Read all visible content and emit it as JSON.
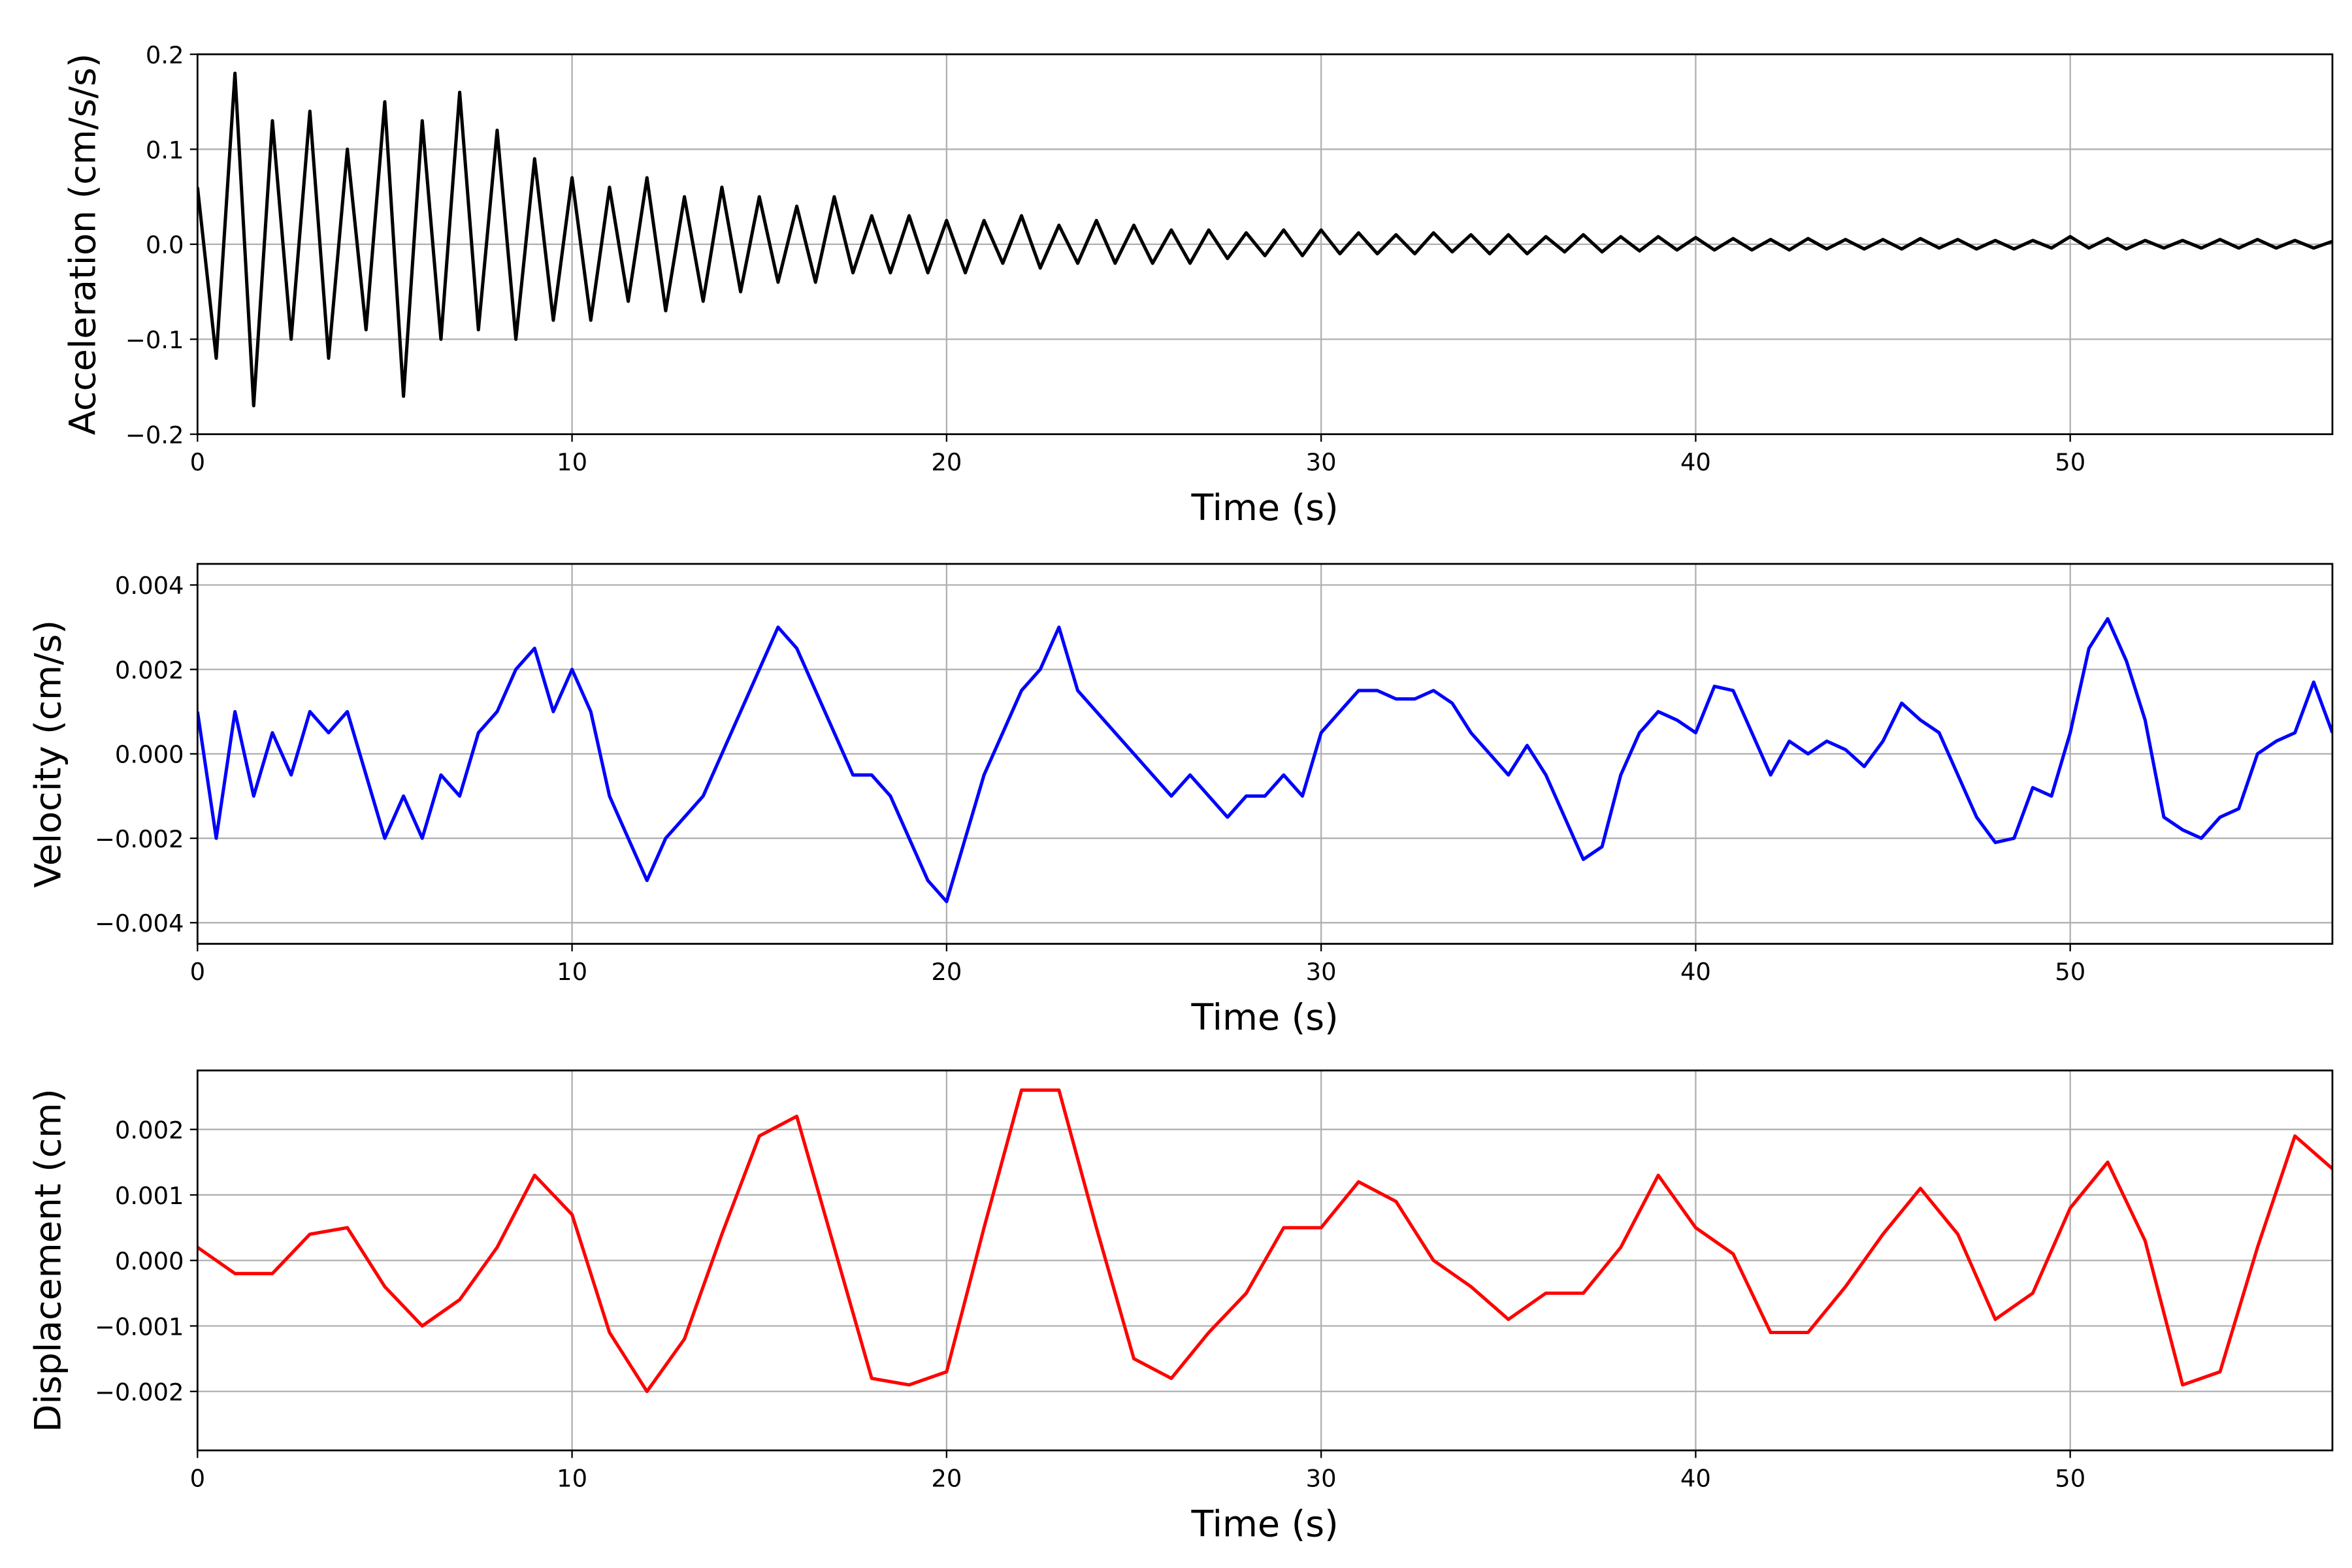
{
  "chart_data": [
    {
      "type": "line",
      "xlabel": "Time (s)",
      "ylabel": "Acceleration (cm/s/s)",
      "color": "#000000",
      "grid": true,
      "xlim": [
        0,
        57
      ],
      "xticks": [
        0,
        10,
        20,
        30,
        40,
        50
      ],
      "ylim": [
        -0.2,
        0.2
      ],
      "yticks": [
        {
          "value": -0.2,
          "label": "−0.2"
        },
        {
          "value": -0.1,
          "label": "−0.1"
        },
        {
          "value": 0,
          "label": "0.0"
        },
        0.1,
        0.2
      ],
      "x": [
        0,
        0.5,
        1,
        1.5,
        2,
        2.5,
        3,
        3.5,
        4,
        4.5,
        5,
        5.5,
        6,
        6.5,
        7,
        7.5,
        8,
        8.5,
        9,
        9.5,
        10,
        10.5,
        11,
        11.5,
        12,
        12.5,
        13,
        13.5,
        14,
        14.5,
        15,
        15.5,
        16,
        16.5,
        17,
        17.5,
        18,
        18.5,
        19,
        19.5,
        20,
        20.5,
        21,
        21.5,
        22,
        22.5,
        23,
        23.5,
        24,
        24.5,
        25,
        25.5,
        26,
        26.5,
        27,
        27.5,
        28,
        28.5,
        29,
        29.5,
        30,
        30.5,
        31,
        31.5,
        32,
        32.5,
        33,
        33.5,
        34,
        34.5,
        35,
        35.5,
        36,
        36.5,
        37,
        37.5,
        38,
        38.5,
        39,
        39.5,
        40,
        40.5,
        41,
        41.5,
        42,
        42.5,
        43,
        43.5,
        44,
        44.5,
        45,
        45.5,
        46,
        46.5,
        47,
        47.5,
        48,
        48.5,
        49,
        49.5,
        50,
        50.5,
        51,
        51.5,
        52,
        52.5,
        53,
        53.5,
        54,
        54.5,
        55,
        55.5,
        56,
        56.5,
        57
      ],
      "values": [
        0.06,
        -0.12,
        0.18,
        -0.17,
        0.13,
        -0.1,
        0.14,
        -0.12,
        0.1,
        -0.09,
        0.15,
        -0.16,
        0.13,
        -0.1,
        0.16,
        -0.09,
        0.12,
        -0.1,
        0.09,
        -0.08,
        0.07,
        -0.08,
        0.06,
        -0.06,
        0.07,
        -0.07,
        0.05,
        -0.06,
        0.06,
        -0.05,
        0.05,
        -0.04,
        0.04,
        -0.04,
        0.05,
        -0.03,
        0.03,
        -0.03,
        0.03,
        -0.03,
        0.025,
        -0.03,
        0.025,
        -0.02,
        0.03,
        -0.025,
        0.02,
        -0.02,
        0.025,
        -0.02,
        0.02,
        -0.02,
        0.015,
        -0.02,
        0.015,
        -0.015,
        0.012,
        -0.012,
        0.015,
        -0.012,
        0.015,
        -0.01,
        0.012,
        -0.01,
        0.01,
        -0.01,
        0.012,
        -0.008,
        0.01,
        -0.01,
        0.01,
        -0.01,
        0.008,
        -0.008,
        0.01,
        -0.008,
        0.008,
        -0.007,
        0.008,
        -0.006,
        0.007,
        -0.006,
        0.006,
        -0.006,
        0.005,
        -0.006,
        0.006,
        -0.005,
        0.005,
        -0.005,
        0.005,
        -0.005,
        0.006,
        -0.004,
        0.005,
        -0.005,
        0.004,
        -0.005,
        0.004,
        -0.004,
        0.008,
        -0.004,
        0.006,
        -0.005,
        0.004,
        -0.004,
        0.004,
        -0.004,
        0.005,
        -0.004,
        0.005,
        -0.004,
        0.004,
        -0.004,
        0.003
      ]
    },
    {
      "type": "line",
      "xlabel": "Time (s)",
      "ylabel": "Velocity (cm/s)",
      "color": "#0000ff",
      "grid": true,
      "xlim": [
        0,
        57
      ],
      "xticks": [
        0,
        10,
        20,
        30,
        40,
        50
      ],
      "ylim": [
        -0.0045,
        0.0045
      ],
      "yticks": [
        {
          "value": -0.004,
          "label": "−0.004"
        },
        {
          "value": -0.002,
          "label": "−0.002"
        },
        {
          "value": 0,
          "label": "0.000"
        },
        0.002,
        0.004
      ],
      "x": [
        0,
        0.5,
        1,
        1.5,
        2,
        2.5,
        3,
        3.5,
        4,
        4.5,
        5,
        5.5,
        6,
        6.5,
        7,
        7.5,
        8,
        8.5,
        9,
        9.5,
        10,
        10.5,
        11,
        11.5,
        12,
        12.5,
        13,
        13.5,
        14,
        14.5,
        15,
        15.5,
        16,
        16.5,
        17,
        17.5,
        18,
        18.5,
        19,
        19.5,
        20,
        20.5,
        21,
        21.5,
        22,
        22.5,
        23,
        23.5,
        24,
        24.5,
        25,
        25.5,
        26,
        26.5,
        27,
        27.5,
        28,
        28.5,
        29,
        29.5,
        30,
        30.5,
        31,
        31.5,
        32,
        32.5,
        33,
        33.5,
        34,
        34.5,
        35,
        35.5,
        36,
        36.5,
        37,
        37.5,
        38,
        38.5,
        39,
        39.5,
        40,
        40.5,
        41,
        41.5,
        42,
        42.5,
        43,
        43.5,
        44,
        44.5,
        45,
        45.5,
        46,
        46.5,
        47,
        47.5,
        48,
        48.5,
        49,
        49.5,
        50,
        50.5,
        51,
        51.5,
        52,
        52.5,
        53,
        53.5,
        54,
        54.5,
        55,
        55.5,
        56,
        56.5,
        57
      ],
      "values": [
        0.001,
        -0.002,
        0.001,
        -0.001,
        0.0005,
        -0.0005,
        0.001,
        0.0005,
        0.001,
        -0.0005,
        -0.002,
        -0.001,
        -0.002,
        -0.0005,
        -0.001,
        0.0005,
        0.001,
        0.002,
        0.0025,
        0.001,
        0.002,
        0.001,
        -0.001,
        -0.002,
        -0.003,
        -0.002,
        -0.0015,
        -0.001,
        0,
        0.001,
        0.002,
        0.003,
        0.0025,
        0.0015,
        0.0005,
        -0.0005,
        -0.0005,
        -0.001,
        -0.002,
        -0.003,
        -0.0035,
        -0.002,
        -0.0005,
        0.0005,
        0.0015,
        0.002,
        0.003,
        0.0015,
        0.001,
        0.0005,
        0,
        -0.0005,
        -0.001,
        -0.0005,
        -0.001,
        -0.0015,
        -0.001,
        -0.001,
        -0.0005,
        -0.001,
        0.0005,
        0.001,
        0.0015,
        0.0015,
        0.0013,
        0.0013,
        0.0015,
        0.0012,
        0.0005,
        0,
        -0.0005,
        0.0002,
        -0.0005,
        -0.0015,
        -0.0025,
        -0.0022,
        -0.0005,
        0.0005,
        0.001,
        0.0008,
        0.0005,
        0.0016,
        0.0015,
        0.0005,
        -0.0005,
        0.0003,
        0,
        0.0003,
        0.0001,
        -0.0003,
        0.0003,
        0.0012,
        0.0008,
        0.0005,
        -0.0005,
        -0.0015,
        -0.0021,
        -0.002,
        -0.0008,
        -0.001,
        0.0005,
        0.0025,
        0.0032,
        0.0022,
        0.0008,
        -0.0015,
        -0.0018,
        -0.002,
        -0.0015,
        -0.0013,
        0,
        0.0003,
        0.0005,
        0.0017,
        0.0005
      ]
    },
    {
      "type": "line",
      "xlabel": "Time (s)",
      "ylabel": "Displacement (cm)",
      "color": "#ff0000",
      "grid": true,
      "xlim": [
        0,
        57
      ],
      "xticks": [
        0,
        10,
        20,
        30,
        40,
        50
      ],
      "ylim": [
        -0.0029,
        0.0029
      ],
      "yticks": [
        {
          "value": -0.002,
          "label": "−0.002"
        },
        {
          "value": -0.001,
          "label": "−0.001"
        },
        {
          "value": 0,
          "label": "0.000"
        },
        0.001,
        0.002
      ],
      "x": [
        0,
        1,
        2,
        3,
        4,
        5,
        6,
        7,
        8,
        9,
        10,
        11,
        12,
        13,
        14,
        15,
        16,
        17,
        18,
        19,
        20,
        21,
        22,
        23,
        24,
        25,
        26,
        27,
        28,
        29,
        30,
        31,
        32,
        33,
        34,
        35,
        36,
        37,
        38,
        39,
        40,
        41,
        42,
        43,
        44,
        45,
        46,
        47,
        48,
        49,
        50,
        51,
        52,
        53,
        54,
        55,
        56,
        57
      ],
      "values": [
        0.0002,
        -0.0002,
        -0.0002,
        0.0004,
        0.0005,
        -0.0004,
        -0.001,
        -0.0006,
        0.0002,
        0.0013,
        0.0007,
        -0.0011,
        -0.002,
        -0.0012,
        0.0004,
        0.0019,
        0.0022,
        0.0002,
        -0.0018,
        -0.0019,
        -0.0017,
        0.0005,
        0.0026,
        0.0026,
        0.0005,
        -0.0015,
        -0.0018,
        -0.0011,
        -0.0005,
        0.0005,
        0.0005,
        0.0012,
        0.0009,
        0,
        -0.0004,
        -0.0009,
        -0.0005,
        -0.0005,
        0.0002,
        0.0013,
        0.0005,
        0.0001,
        -0.0011,
        -0.0011,
        -0.0004,
        0.0004,
        0.0011,
        0.0004,
        -0.0009,
        -0.0005,
        0.0008,
        0.0015,
        0.0003,
        -0.0019,
        -0.0017,
        0.0002,
        0.0019,
        0.0014
      ]
    }
  ]
}
